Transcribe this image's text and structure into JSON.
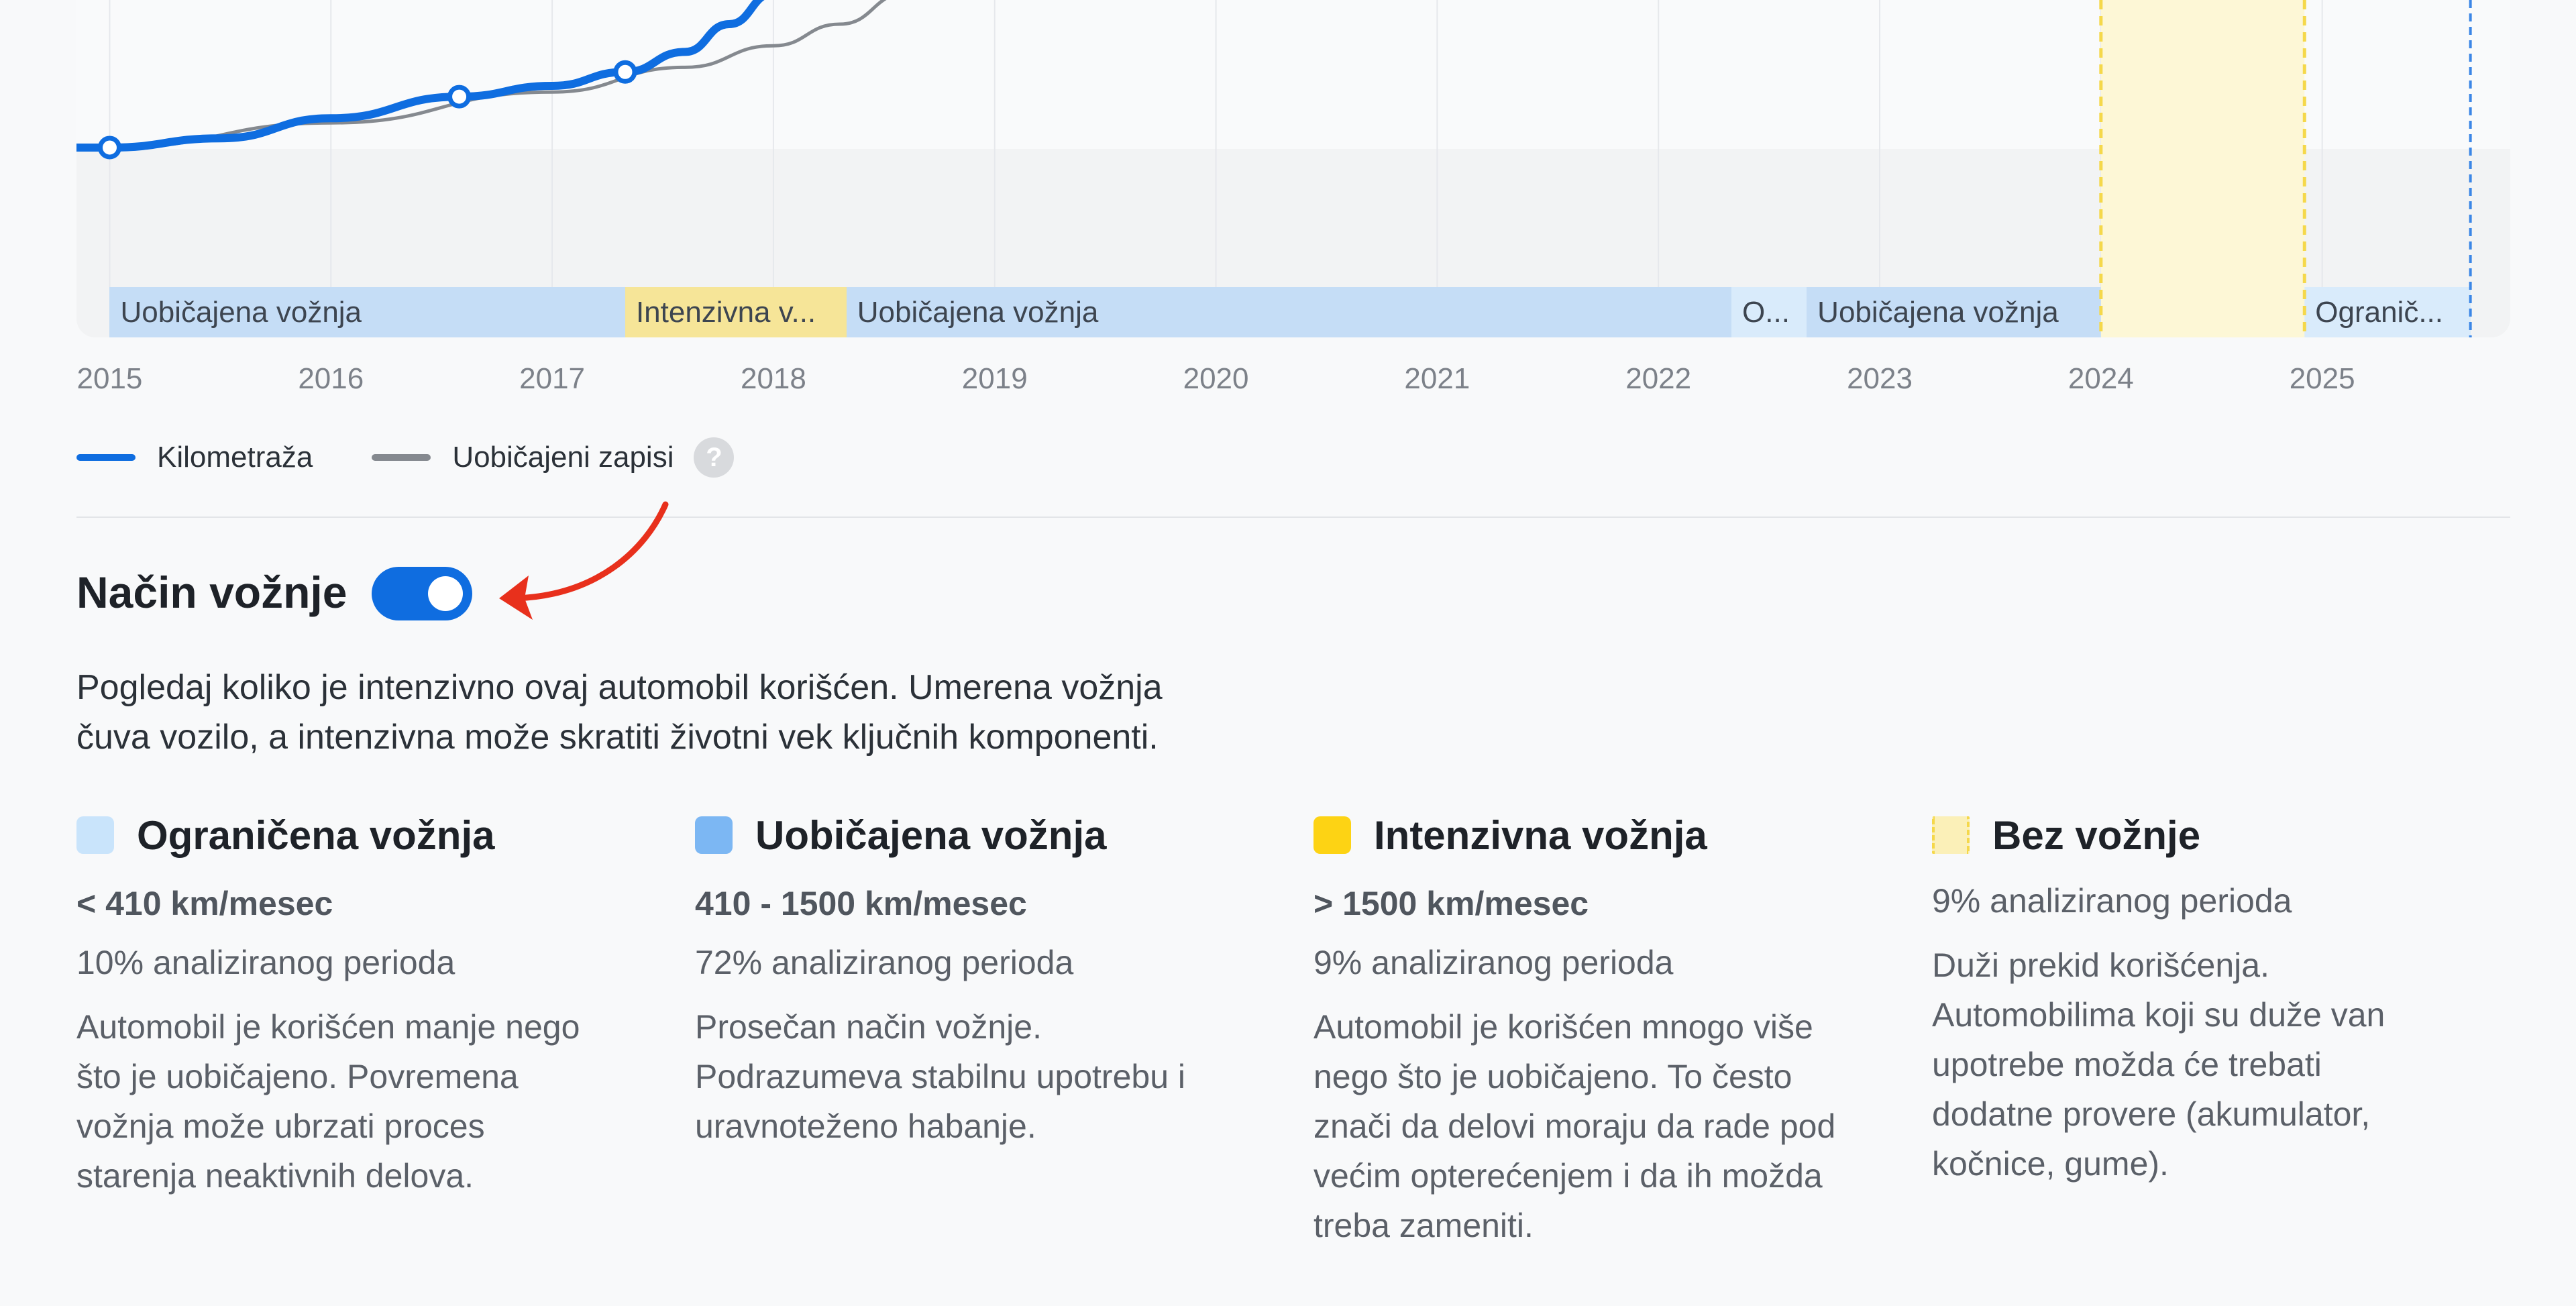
{
  "chart_data": {
    "type": "line",
    "x_tick_labels": [
      "2015",
      "2016",
      "2017",
      "2018",
      "2019",
      "2020",
      "2021",
      "2022",
      "2023",
      "2024",
      "2025"
    ],
    "xlim": [
      2014.85,
      2025.85
    ],
    "series": [
      {
        "name": "Kilometraža",
        "color": "#0f6de0",
        "points": [
          [
            2014.85,
            0.0
          ],
          [
            2015.0,
            0.0
          ],
          [
            2015.5,
            0.06
          ],
          [
            2016.0,
            0.19
          ],
          [
            2016.58,
            0.33
          ],
          [
            2017.0,
            0.4
          ],
          [
            2017.33,
            0.49
          ],
          [
            2017.6,
            0.62
          ],
          [
            2017.8,
            0.8
          ],
          [
            2018.0,
            1.0
          ]
        ],
        "markers": [
          [
            2015.0,
            0.0
          ],
          [
            2016.58,
            0.33
          ],
          [
            2017.33,
            0.49
          ]
        ]
      },
      {
        "name": "Uobičajeni zapisi",
        "color": "#85898f",
        "points": [
          [
            2014.85,
            0.0
          ],
          [
            2015.0,
            0.0
          ],
          [
            2016.0,
            0.16
          ],
          [
            2017.0,
            0.36
          ],
          [
            2017.6,
            0.52
          ],
          [
            2018.0,
            0.66
          ],
          [
            2018.3,
            0.8
          ],
          [
            2018.6,
            1.0
          ]
        ]
      }
    ],
    "driving_segments": [
      {
        "label": "Uobičajena vožnja",
        "type": "normal",
        "start": 2015.0,
        "end": 2017.33
      },
      {
        "label": "Intenzivna v...",
        "type": "intense",
        "start": 2017.33,
        "end": 2018.33
      },
      {
        "label": "Uobičajena vožnja",
        "type": "normal",
        "start": 2018.33,
        "end": 2022.33
      },
      {
        "label": "O...",
        "type": "limited",
        "start": 2022.33,
        "end": 2022.67
      },
      {
        "label": "Uobičajena vožnja",
        "type": "normal",
        "start": 2022.67,
        "end": 2024.0
      },
      {
        "label": "Bez vožnje",
        "type": "none",
        "start": 2024.0,
        "end": 2024.92
      },
      {
        "label": "Ogranič...",
        "type": "limited",
        "start": 2024.92,
        "end": 2025.67
      }
    ],
    "no_driving_band": [
      2024.0,
      2024.92
    ],
    "current_date_marker": 2025.67,
    "colors": {
      "normal": "#c5ddf6",
      "intense": "#f6e598",
      "limited": "#d9ebfb",
      "none_fill": "#fdf7d6",
      "none_border": "#f5d84a",
      "marker_line": "#3b86e6"
    }
  },
  "legend": [
    {
      "label": "Kilometraža",
      "color": "#0f6de0"
    },
    {
      "label": "Uobičajeni zapisi",
      "color": "#85898f",
      "help_icon": "help-icon",
      "help_glyph": "?"
    }
  ],
  "section": {
    "title": "Način vožnje",
    "toggle_on": true,
    "toggle_color": "#0f6de0",
    "annotation_arrow_color": "#e8301c",
    "description_lines": [
      "Pogledaj koliko je intenzivno ovaj automobil korišćen. Umerena vožnja",
      "čuva vozilo, a intenzivna može skratiti životni vek ključnih komponenti."
    ]
  },
  "categories": [
    {
      "title": "Ograničena vožnja",
      "swatch": "#c9e4fb",
      "range": "< 410 km/mesec",
      "period": "10% analiziranog perioda",
      "desc_lines": [
        "Automobil je korišćen manje nego",
        "što je uobičajeno. Povremena",
        "vožnja može ubrzati proces",
        "starenja neaktivnih delova."
      ]
    },
    {
      "title": "Uobičajena vožnja",
      "swatch": "#7cb7f3",
      "range": "410 - 1500 km/mesec",
      "period": "72% analiziranog perioda",
      "desc_lines": [
        "Prosečan način vožnje.",
        "Podrazumeva stabilnu upotrebu i",
        "uravnoteženo habanje."
      ]
    },
    {
      "title": "Intenzivna vožnja",
      "swatch": "#fdd314",
      "range": "> 1500 km/mesec",
      "period": "9% analiziranog perioda",
      "desc_lines": [
        "Automobil je korišćen mnogo više",
        "nego što je uobičajeno. To često",
        "znači da delovi moraju da rade pod",
        "većim opterećenjem i da ih možda",
        "treba zameniti."
      ]
    },
    {
      "title": "Bez vožnje",
      "swatch": "#fbf0b8",
      "swatch_style": "dashed",
      "range": "",
      "period": "9% analiziranog perioda",
      "desc_lines": [
        "Duži prekid korišćenja.",
        "Automobilima koji su duže van",
        "upotrebe možda će trebati",
        "dodatne provere (akumulator,",
        "kočnice, gume)."
      ]
    }
  ]
}
